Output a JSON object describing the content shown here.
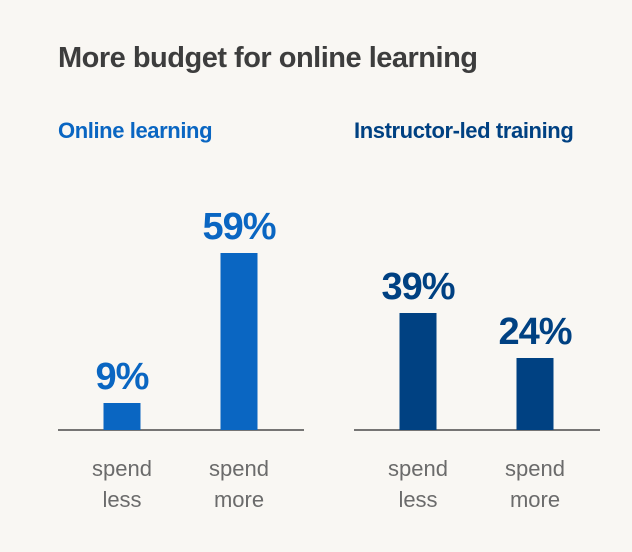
{
  "title": "More budget for online learning",
  "colors": {
    "background": "#f9f7f3",
    "title": "#3d3d3d",
    "online": "#0a66c2",
    "instructor": "#004182",
    "axis": "#4a4a4a",
    "tick": "#6b6b6b"
  },
  "chart_data": [
    {
      "type": "bar",
      "title": "Online learning",
      "categories": [
        [
          "spend",
          "less"
        ],
        [
          "spend",
          "more"
        ]
      ],
      "values": [
        9,
        59
      ],
      "labels": [
        "9%",
        "59%"
      ],
      "unit": "%",
      "ylim": [
        0,
        70
      ],
      "grid": false,
      "color": "#0a66c2"
    },
    {
      "type": "bar",
      "title": "Instructor-led training",
      "categories": [
        [
          "spend",
          "less"
        ],
        [
          "spend",
          "more"
        ]
      ],
      "values": [
        39,
        24
      ],
      "labels": [
        "39%",
        "24%"
      ],
      "unit": "%",
      "ylim": [
        0,
        70
      ],
      "grid": false,
      "color": "#004182"
    }
  ]
}
